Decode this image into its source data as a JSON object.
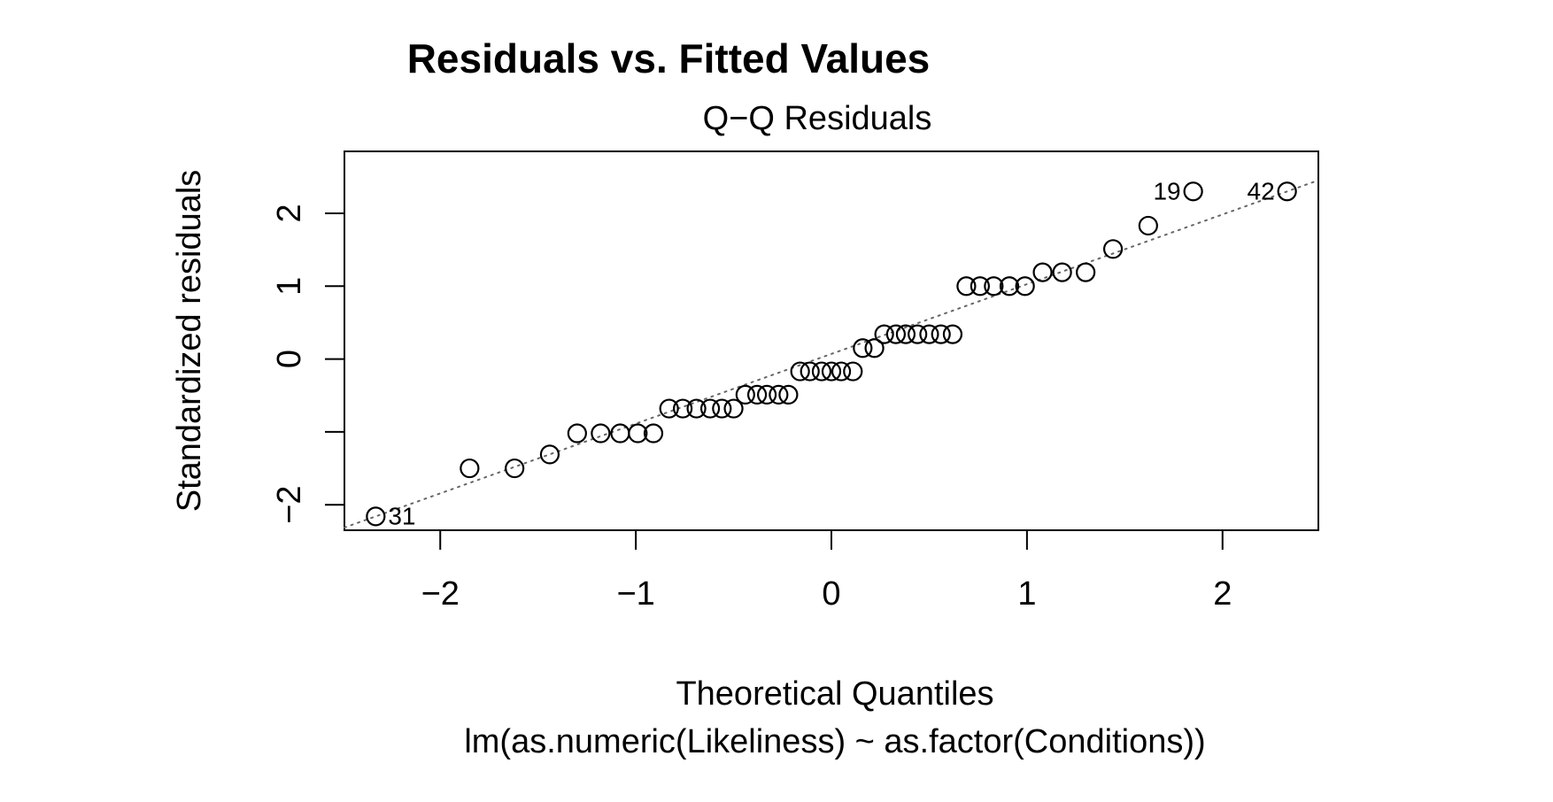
{
  "chart_data": {
    "type": "scatter",
    "title": "Residuals vs. Fitted Values",
    "subtitle": "Q−Q Residuals",
    "xlabel": "Theoretical Quantiles",
    "caption": "lm(as.numeric(Likeliness) ~ as.factor(Conditions))",
    "ylabel": "Standardized residuals",
    "xlim": [
      -2.49,
      2.49
    ],
    "ylim": [
      -2.35,
      2.85
    ],
    "x_ticks": [
      -2,
      -1,
      0,
      1,
      2
    ],
    "x_tick_labels": [
      "−2",
      "−1",
      "0",
      "1",
      "2"
    ],
    "y_ticks": [
      -2,
      -1,
      0,
      1,
      2
    ],
    "y_tick_labels": [
      "−2",
      "",
      "0",
      "1",
      "2"
    ],
    "grid": false,
    "reference_line": {
      "style": "dotted",
      "color": "#666666",
      "points": [
        [
          -2.33,
          -2.16
        ],
        [
          2.33,
          2.3
        ]
      ]
    },
    "points": [
      {
        "x": -2.33,
        "y": -2.16,
        "label": "31"
      },
      {
        "x": -1.85,
        "y": -1.5
      },
      {
        "x": -1.62,
        "y": -1.5
      },
      {
        "x": -1.44,
        "y": -1.31
      },
      {
        "x": -1.3,
        "y": -1.02
      },
      {
        "x": -1.18,
        "y": -1.02
      },
      {
        "x": -1.08,
        "y": -1.02
      },
      {
        "x": -0.99,
        "y": -1.02
      },
      {
        "x": -0.91,
        "y": -1.02
      },
      {
        "x": -0.83,
        "y": -0.68
      },
      {
        "x": -0.76,
        "y": -0.68
      },
      {
        "x": -0.69,
        "y": -0.68
      },
      {
        "x": -0.62,
        "y": -0.68
      },
      {
        "x": -0.56,
        "y": -0.68
      },
      {
        "x": -0.5,
        "y": -0.68
      },
      {
        "x": -0.44,
        "y": -0.49
      },
      {
        "x": -0.38,
        "y": -0.49
      },
      {
        "x": -0.33,
        "y": -0.49
      },
      {
        "x": -0.27,
        "y": -0.49
      },
      {
        "x": -0.22,
        "y": -0.49
      },
      {
        "x": -0.16,
        "y": -0.17
      },
      {
        "x": -0.11,
        "y": -0.17
      },
      {
        "x": -0.05,
        "y": -0.17
      },
      {
        "x": 0.0,
        "y": -0.17
      },
      {
        "x": 0.05,
        "y": -0.17
      },
      {
        "x": 0.11,
        "y": -0.17
      },
      {
        "x": 0.16,
        "y": 0.15
      },
      {
        "x": 0.22,
        "y": 0.15
      },
      {
        "x": 0.27,
        "y": 0.34
      },
      {
        "x": 0.33,
        "y": 0.34
      },
      {
        "x": 0.38,
        "y": 0.34
      },
      {
        "x": 0.44,
        "y": 0.34
      },
      {
        "x": 0.5,
        "y": 0.34
      },
      {
        "x": 0.56,
        "y": 0.34
      },
      {
        "x": 0.62,
        "y": 0.34
      },
      {
        "x": 0.69,
        "y": 1.0
      },
      {
        "x": 0.76,
        "y": 1.0
      },
      {
        "x": 0.83,
        "y": 1.0
      },
      {
        "x": 0.91,
        "y": 1.0
      },
      {
        "x": 0.99,
        "y": 1.0
      },
      {
        "x": 1.08,
        "y": 1.19
      },
      {
        "x": 1.18,
        "y": 1.19
      },
      {
        "x": 1.3,
        "y": 1.19
      },
      {
        "x": 1.44,
        "y": 1.51
      },
      {
        "x": 1.62,
        "y": 1.83
      },
      {
        "x": 1.85,
        "y": 2.3,
        "label": "19"
      },
      {
        "x": 2.33,
        "y": 2.3,
        "label": "42"
      }
    ]
  }
}
